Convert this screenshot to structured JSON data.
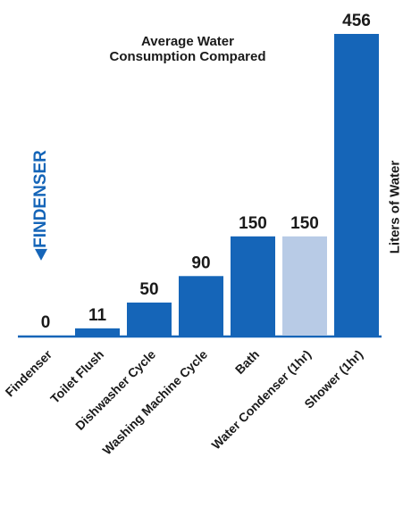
{
  "chart_data": {
    "type": "bar",
    "title": "Average Water Consumption Compared",
    "title_lines": [
      "Average Water",
      "Consumption Compared"
    ],
    "ylabel": "Liters of Water",
    "brand_label": "FINDENSER",
    "categories": [
      "Findenser",
      "Toilet Flush",
      "Dishwasher Cycle",
      "Washing Machine Cycle",
      "Bath",
      "Water Condenser (1hr)",
      "Shower (1hr)"
    ],
    "values": [
      0,
      11,
      50,
      90,
      150,
      150,
      456
    ],
    "value_labels": [
      "0",
      "11",
      "50",
      "90",
      "150",
      "150",
      "456"
    ],
    "bar_colors": [
      "#1565b8",
      "#1565b8",
      "#1565b8",
      "#1565b8",
      "#1565b8",
      "#b8cbe6",
      "#1565b8"
    ],
    "ylim": [
      0,
      456
    ],
    "grid": false,
    "legend": false
  },
  "colors": {
    "primary_bar": "#1565b8",
    "highlight_bar": "#b8cbe6",
    "axis": "#1565b8",
    "text": "#1a1a1a"
  }
}
